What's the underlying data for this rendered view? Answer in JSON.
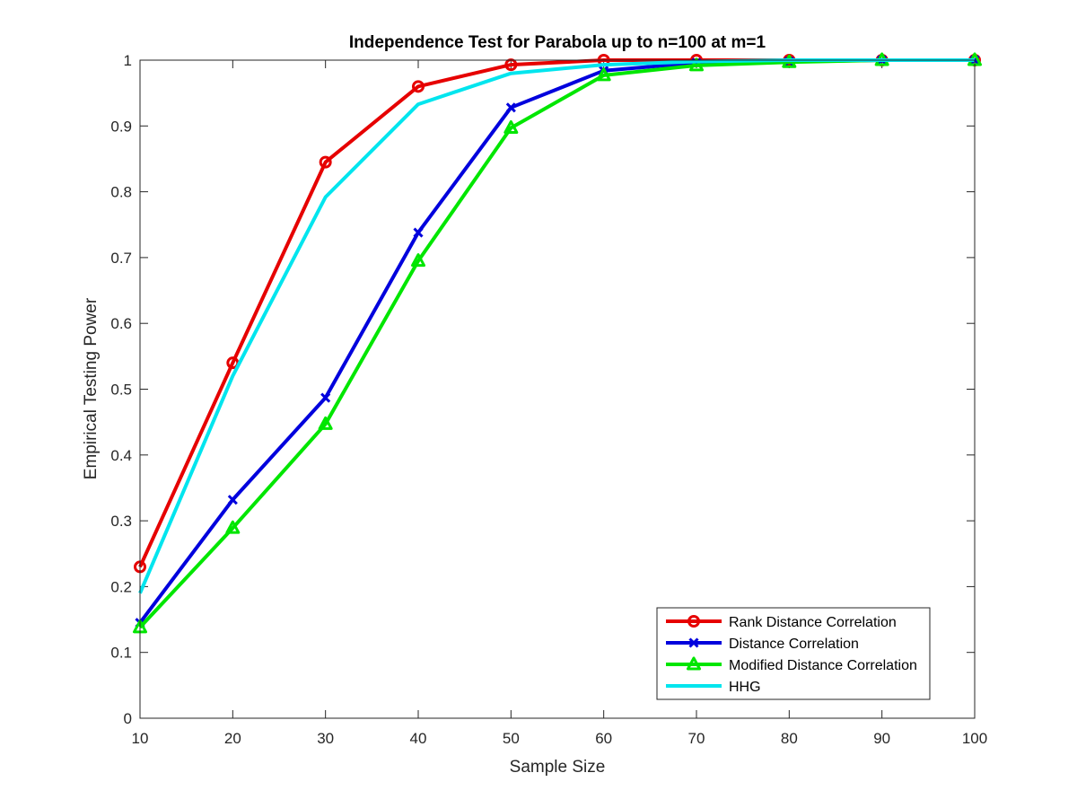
{
  "chart_data": {
    "type": "line",
    "title": "Independence Test for Parabola up to n=100 at m=1",
    "xlabel": "Sample Size",
    "ylabel": "Empirical Testing Power",
    "x": [
      10,
      20,
      30,
      40,
      50,
      60,
      70,
      80,
      90,
      100
    ],
    "xlim": [
      10,
      100
    ],
    "ylim": [
      0,
      1
    ],
    "xticks": [
      "10",
      "20",
      "30",
      "40",
      "50",
      "60",
      "70",
      "80",
      "90",
      "100"
    ],
    "yticks": [
      "0",
      "0.1",
      "0.2",
      "0.3",
      "0.4",
      "0.5",
      "0.6",
      "0.7",
      "0.8",
      "0.9",
      "1"
    ],
    "grid": false,
    "legend_position": "bottom-right",
    "series": [
      {
        "name": "Rank Distance Correlation",
        "color": "#e60000",
        "marker": "circle",
        "values": [
          0.23,
          0.54,
          0.845,
          0.96,
          0.993,
          1.0,
          1.0,
          1.0,
          1.0,
          1.0
        ]
      },
      {
        "name": "Distance Correlation",
        "color": "#0000dd",
        "marker": "x",
        "values": [
          0.145,
          0.332,
          0.487,
          0.738,
          0.928,
          0.984,
          0.996,
          0.998,
          1.0,
          1.0
        ]
      },
      {
        "name": "Modified Distance Correlation",
        "color": "#00e600",
        "marker": "triangle",
        "values": [
          0.138,
          0.289,
          0.447,
          0.695,
          0.897,
          0.977,
          0.992,
          0.997,
          1.0,
          1.0
        ]
      },
      {
        "name": "HHG",
        "color": "#00e5ee",
        "marker": "none",
        "values": [
          0.19,
          0.52,
          0.792,
          0.933,
          0.98,
          0.993,
          0.998,
          1.0,
          1.0,
          1.0
        ]
      }
    ]
  }
}
